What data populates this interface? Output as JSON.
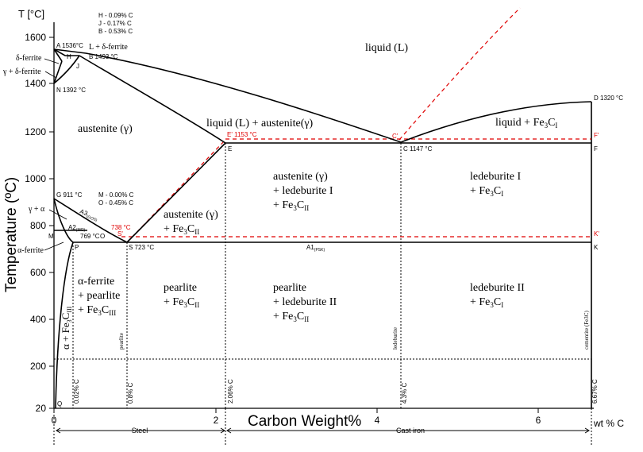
{
  "y_axis": {
    "unit_label": "T [°C]",
    "title": "Temperature (ºC)",
    "ticks": [
      "1600",
      "1400",
      "1200",
      "1000",
      "800",
      "600",
      "400",
      "200",
      "20"
    ]
  },
  "x_axis": {
    "title": "Carbon Weight%",
    "unit_label": "wt % C",
    "ticks": [
      "0",
      "2",
      "4",
      "6"
    ],
    "zones": {
      "steel": "Steel",
      "cast_iron": "Cast iron"
    }
  },
  "colors": {
    "phase_line": "#000000",
    "metastable_line": "#e00000",
    "guide_line": "#000000"
  },
  "points": {
    "A": "A 1536°C",
    "B": "B 1493 °C",
    "H": "H",
    "J": "J",
    "N": "N 1392 °C",
    "D": "D 1320 °C",
    "E_red": "E' 1153 °C",
    "E": "E",
    "C_red": "C'",
    "C": "C 1147 °C",
    "F_red": "F'",
    "F": "F",
    "G": "G 911 °C",
    "M": "M",
    "O": "O",
    "P": "P",
    "S": "S 723 °C",
    "S_red": "S'",
    "K": "K",
    "K_red": "K'",
    "Q": "Q",
    "temp_738": "738 °C",
    "temp_769": "769 °C"
  },
  "compositions_top": [
    "H - 0.09%  C",
    "J  - 0.17%  C",
    "B - 0.53%  C"
  ],
  "compositions_mid": [
    "M - 0.00%  C",
    "O - 0.45%  C"
  ],
  "lines": {
    "A3": "A3",
    "A3_sub": "(GOS)",
    "A2": "A2",
    "A2_sub": "(MO)",
    "A1": "A1",
    "A1_sub": "(PSK)"
  },
  "left_labels": {
    "delta_ferrite": "δ-ferrite",
    "gamma_delta": "γ + δ-ferrite",
    "gamma_alpha": "γ + α",
    "alpha_ferrite": "α-ferrite",
    "alpha_fe3c": "α + Fe",
    "alpha_fe3c_sub": "3",
    "alpha_fe3c_sub2": "C",
    "alpha_fe3c_sub3": "III"
  },
  "regions": {
    "liquid": "liquid (L)",
    "L_delta": "L + δ-ferrite",
    "austenite": "austenite (γ)",
    "L_austenite": "liquid (L) + austenite(γ)",
    "liquid_fe3c": "liquid + Fe",
    "liquid_fe3c_sub": "3",
    "liquid_fe3c_c": "C",
    "liquid_fe3c_sub2": "I",
    "aust_fe3c_1": "austenite (γ)",
    "aust_fe3c_2": "+ Fe",
    "aust_fe3c_sub": "3",
    "aust_fe3c_c": "C",
    "aust_fe3c_sub2": "II",
    "aust_led_1": "austenite (γ)",
    "aust_led_2": "+ ledeburite I",
    "aust_led_3": "+ Fe",
    "aust_led_sub": "3",
    "aust_led_c": "C",
    "aust_led_sub2": "II",
    "led1_1": "ledeburite I",
    "led1_2": "+ Fe",
    "led1_sub": "3",
    "led1_c": "C",
    "led1_sub2": "I",
    "alpha_pearlite_1": "α-ferrite",
    "alpha_pearlite_2": "+ pearlite",
    "alpha_pearlite_3": "+ Fe",
    "alpha_pearlite_sub": "3",
    "alpha_pearlite_c": "C",
    "alpha_pearlite_sub2": "III",
    "pearlite_1": "pearlite",
    "pearlite_2": "+ Fe",
    "pearlite_sub": "3",
    "pearlite_c": "C",
    "pearlite_sub2": "II",
    "pearl_led_1": "pearlite",
    "pearl_led_2": "+ ledeburite II",
    "pearl_led_3": "+ Fe",
    "pearl_led_sub": "3",
    "pearl_led_c": "C",
    "pearl_led_sub2": "II",
    "led2_1": "ledeburite II",
    "led2_2": "+ Fe",
    "led2_sub": "3",
    "led2_c": "C",
    "led2_sub2": "I"
  },
  "vertical_labels": {
    "c002": "0.02% C",
    "c08": "0.8% C",
    "c206": "2.06% C",
    "c43": "4.3% C",
    "c667": "6.67% C",
    "pearlite": "pearlite",
    "ledeburite": "ledeburite",
    "cementite": "cementite (Fe3C)"
  }
}
